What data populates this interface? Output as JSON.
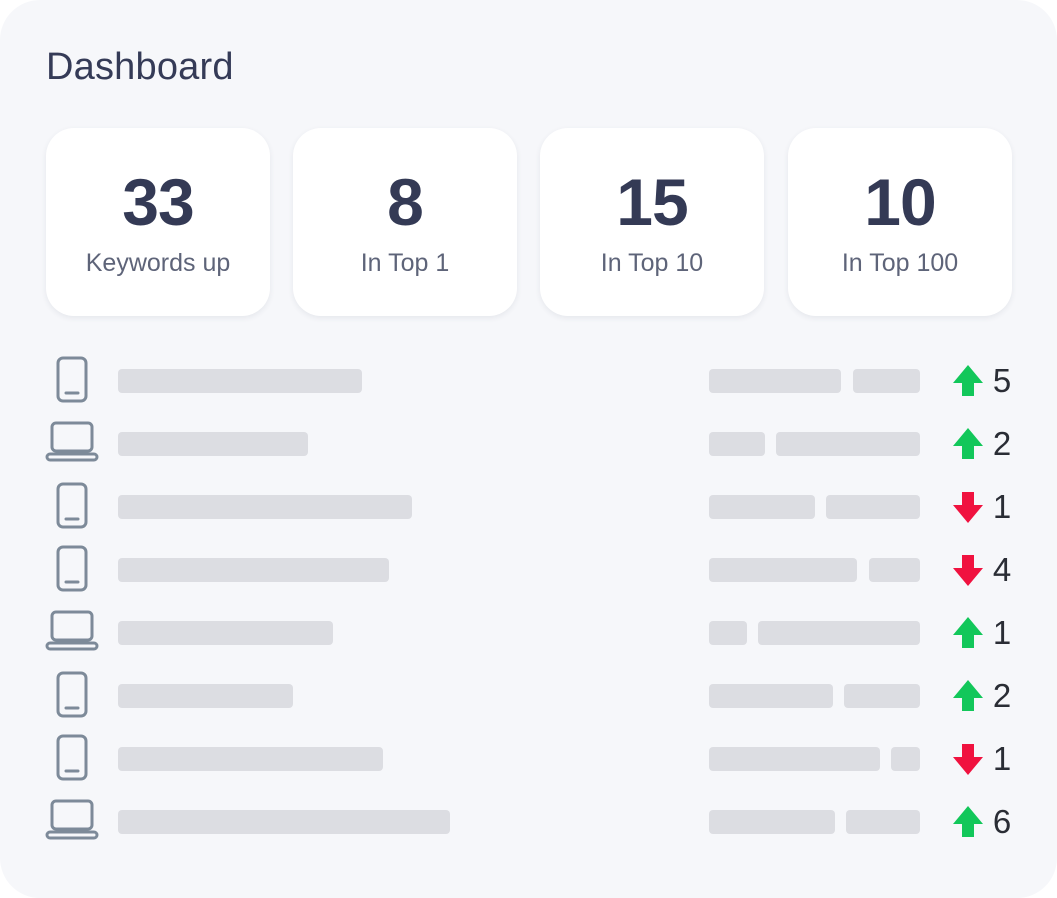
{
  "title": "Dashboard",
  "stats": [
    {
      "value": "33",
      "label": "Keywords up"
    },
    {
      "value": "8",
      "label": "In Top 1"
    },
    {
      "value": "15",
      "label": "In Top 10"
    },
    {
      "value": "10",
      "label": "In Top 100"
    }
  ],
  "colors": {
    "up": "#12c75a",
    "down": "#f0123f",
    "icon": "#7d8a99",
    "placeholder": "#dcdde2"
  },
  "rows": [
    {
      "device": "mobile-icon",
      "trend": "up",
      "change": "5"
    },
    {
      "device": "laptop-icon",
      "trend": "up",
      "change": "2"
    },
    {
      "device": "mobile-icon",
      "trend": "down",
      "change": "1"
    },
    {
      "device": "mobile-icon",
      "trend": "down",
      "change": "4"
    },
    {
      "device": "laptop-icon",
      "trend": "up",
      "change": "1"
    },
    {
      "device": "mobile-icon",
      "trend": "up",
      "change": "2"
    },
    {
      "device": "mobile-icon",
      "trend": "down",
      "change": "1"
    },
    {
      "device": "laptop-icon",
      "trend": "up",
      "change": "6"
    }
  ]
}
